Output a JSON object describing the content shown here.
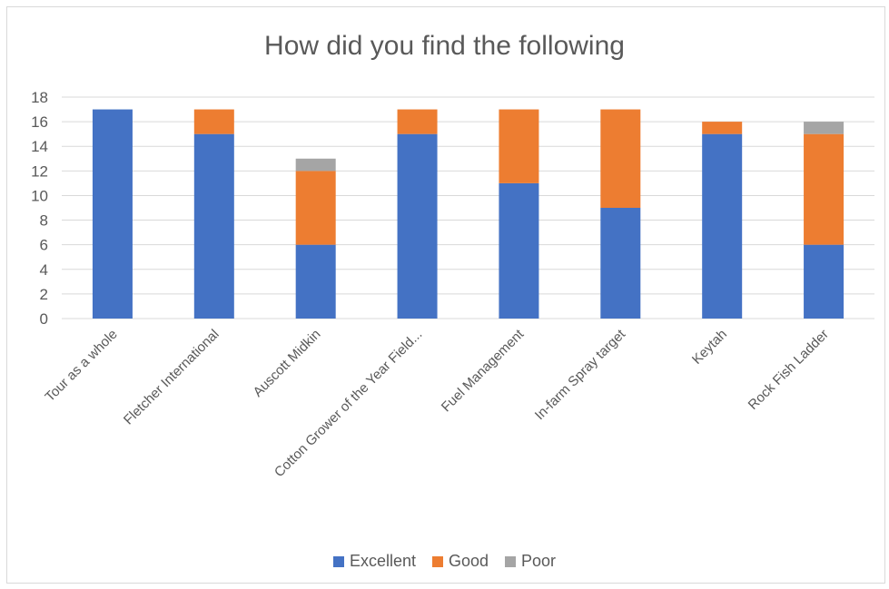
{
  "chart_data": {
    "type": "bar",
    "stacked": true,
    "title": "How did you find the following",
    "categories": [
      "Tour as a whole",
      "Fletcher International",
      "Auscott Midkin",
      "Cotton Grower of the Year Field...",
      "Fuel Management",
      "In-farm Spray target",
      "Keytah",
      "Rock Fish Ladder"
    ],
    "series": [
      {
        "name": "Excellent",
        "color": "#4472C4",
        "values": [
          17,
          15,
          6,
          15,
          11,
          9,
          15,
          6
        ]
      },
      {
        "name": "Good",
        "color": "#ED7D31",
        "values": [
          0,
          2,
          6,
          2,
          6,
          8,
          1,
          9
        ]
      },
      {
        "name": "Poor",
        "color": "#A5A5A5",
        "values": [
          0,
          0,
          1,
          0,
          0,
          0,
          0,
          1
        ]
      }
    ],
    "ylim": [
      0,
      18
    ],
    "yticks": [
      0,
      2,
      4,
      6,
      8,
      10,
      12,
      14,
      16,
      18
    ],
    "grid": true,
    "legend_position": "bottom"
  }
}
